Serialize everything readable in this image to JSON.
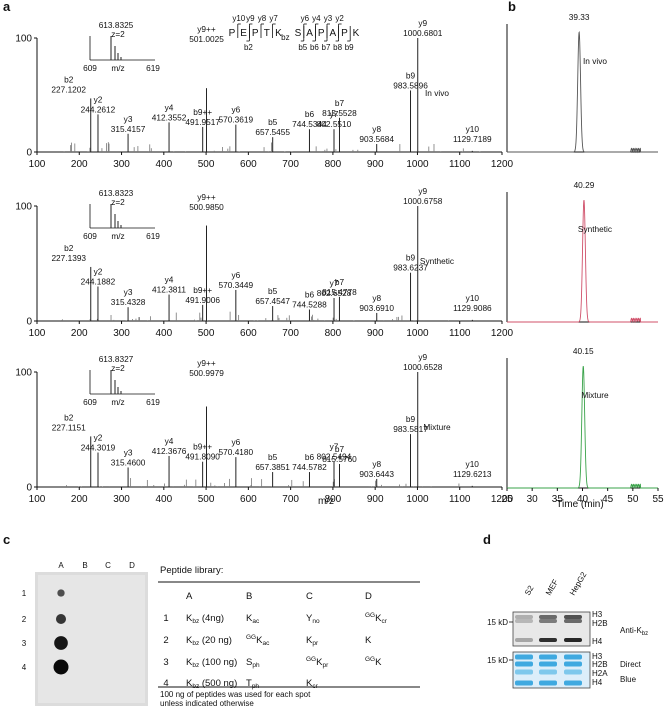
{
  "panels": {
    "a": "a",
    "b": "b",
    "c": "c",
    "d": "d"
  },
  "chart_data": [
    {
      "type": "bar",
      "panel": "a",
      "xlabel": "m/z",
      "xlim": [
        100,
        1200
      ],
      "ylim": [
        0,
        100
      ],
      "xticks": [
        "100",
        "200",
        "300",
        "400",
        "500",
        "600",
        "700",
        "800",
        "900",
        "1000",
        "1100",
        "1200"
      ],
      "yticks": [
        "0",
        "100"
      ],
      "peptide": {
        "letters": [
          "P",
          "E",
          "P",
          "T",
          "K",
          "S",
          "A",
          "P",
          "A",
          "P",
          "K"
        ],
        "modification": "bz",
        "y_ions": [
          "y10",
          "y9",
          "y8",
          "y7",
          "y6",
          "y4",
          "y3",
          "y2"
        ],
        "b_ions": [
          "b2",
          "b5",
          "b6",
          "b7",
          "b8",
          "b9"
        ]
      },
      "spectra": [
        {
          "name": "In vivo",
          "inset": {
            "precursor": "613.8325",
            "charge": "z=2",
            "xmin": "609",
            "xmax": "619",
            "xlabel": "m/z"
          },
          "peaks": [
            {
              "mz": 227.1202,
              "i": 47,
              "label": "b2",
              "value": "227.1202"
            },
            {
              "mz": 244.2612,
              "i": 33,
              "label": "y2",
              "value": "244.2612"
            },
            {
              "mz": 315.4157,
              "i": 16,
              "label": "y3",
              "value": "315.4157"
            },
            {
              "mz": 412.3552,
              "i": 26,
              "label": "y4",
              "value": "412.3552"
            },
            {
              "mz": 491.9517,
              "i": 22,
              "label": "b9++",
              "value": "491.9517"
            },
            {
              "mz": 501.0025,
              "i": 56,
              "label": "y9++",
              "value": "501.0025"
            },
            {
              "mz": 570.3619,
              "i": 24,
              "label": "y6",
              "value": "570.3619"
            },
            {
              "mz": 657.5455,
              "i": 13,
              "label": "b5",
              "value": "657.5455"
            },
            {
              "mz": 744.5344,
              "i": 20,
              "label": "b6",
              "value": "744.5344"
            },
            {
              "mz": 802.551,
              "i": 20,
              "label": "y7",
              "value": "802.5510"
            },
            {
              "mz": 815.5528,
              "i": 30,
              "label": "b7",
              "value": "815.5528"
            },
            {
              "mz": 903.5684,
              "i": 7,
              "label": "y8",
              "value": "903.5684"
            },
            {
              "mz": 983.5896,
              "i": 54,
              "label": "b9",
              "value": "983.5896"
            },
            {
              "mz": 1000.6801,
              "i": 100,
              "label": "y9",
              "value": "1000.6801"
            },
            {
              "mz": 1129.7189,
              "i": 1,
              "label": "y10",
              "value": "1129.7189"
            }
          ]
        },
        {
          "name": "Synthetic",
          "inset": {
            "precursor": "613.8323",
            "charge": "z=2",
            "xmin": "609",
            "xmax": "619",
            "xlabel": "m/z"
          },
          "peaks": [
            {
              "mz": 227.1393,
              "i": 47,
              "label": "b2",
              "value": "227.1393"
            },
            {
              "mz": 244.1882,
              "i": 30,
              "label": "y2",
              "value": "244.1882"
            },
            {
              "mz": 315.4328,
              "i": 12,
              "label": "y3",
              "value": "315.4328"
            },
            {
              "mz": 412.3811,
              "i": 23,
              "label": "y4",
              "value": "412.3811"
            },
            {
              "mz": 491.9006,
              "i": 14,
              "label": "b9++",
              "value": "491.9006"
            },
            {
              "mz": 500.985,
              "i": 83,
              "label": "y9++",
              "value": "500.9850"
            },
            {
              "mz": 570.3449,
              "i": 27,
              "label": "y6",
              "value": "570.3449"
            },
            {
              "mz": 657.4547,
              "i": 13,
              "label": "b5",
              "value": "657.4547"
            },
            {
              "mz": 744.5288,
              "i": 10,
              "label": "b6",
              "value": "744.5288"
            },
            {
              "mz": 802.6528,
              "i": 20,
              "label": "y7",
              "value": "802.6528"
            },
            {
              "mz": 815.4778,
              "i": 21,
              "label": "b7",
              "value": "815.4778"
            },
            {
              "mz": 903.691,
              "i": 7,
              "label": "y8",
              "value": "903.6910"
            },
            {
              "mz": 983.6237,
              "i": 42,
              "label": "b9",
              "value": "983.6237"
            },
            {
              "mz": 1000.6758,
              "i": 100,
              "label": "y9",
              "value": "1000.6758"
            },
            {
              "mz": 1129.9086,
              "i": 1,
              "label": "y10",
              "value": "1129.9086"
            }
          ]
        },
        {
          "name": "Mixture",
          "inset": {
            "precursor": "613.8327",
            "charge": "z=2",
            "xmin": "609",
            "xmax": "619",
            "xlabel": "m/z"
          },
          "peaks": [
            {
              "mz": 227.1151,
              "i": 44,
              "label": "b2",
              "value": "227.1151"
            },
            {
              "mz": 244.3019,
              "i": 30,
              "label": "y2",
              "value": "244.3019"
            },
            {
              "mz": 315.46,
              "i": 17,
              "label": "y3",
              "value": "315.4600"
            },
            {
              "mz": 412.3676,
              "i": 27,
              "label": "y4",
              "value": "412.3676"
            },
            {
              "mz": 491.809,
              "i": 22,
              "label": "b9++",
              "value": "491.8090"
            },
            {
              "mz": 500.9979,
              "i": 70,
              "label": "y9++",
              "value": "500.9979"
            },
            {
              "mz": 570.418,
              "i": 26,
              "label": "y6",
              "value": "570.4180"
            },
            {
              "mz": 657.3851,
              "i": 13,
              "label": "b5",
              "value": "657.3851"
            },
            {
              "mz": 744.5782,
              "i": 13,
              "label": "b6",
              "value": "744.5782"
            },
            {
              "mz": 802.5494,
              "i": 22,
              "label": "y7",
              "value": "802.5494"
            },
            {
              "mz": 815.576,
              "i": 20,
              "label": "b7",
              "value": "815.5760"
            },
            {
              "mz": 903.6443,
              "i": 7,
              "label": "y8",
              "value": "903.6443"
            },
            {
              "mz": 983.5817,
              "i": 46,
              "label": "b9",
              "value": "983.5817"
            },
            {
              "mz": 1000.6528,
              "i": 100,
              "label": "y9",
              "value": "1000.6528"
            },
            {
              "mz": 1129.6213,
              "i": 1,
              "label": "y10",
              "value": "1129.6213"
            }
          ]
        }
      ]
    },
    {
      "type": "line",
      "panel": "b",
      "xlabel": "Time (min)",
      "xlim": [
        25,
        55
      ],
      "xticks": [
        "25",
        "30",
        "35",
        "40",
        "45",
        "50",
        "55"
      ],
      "series": [
        {
          "name": "In vivo",
          "apex": 39.33,
          "apex_label": "39.33",
          "color": "#555555"
        },
        {
          "name": "Synthetic",
          "apex": 40.29,
          "apex_label": "40.29",
          "color": "#d0506a"
        },
        {
          "name": "Mixture",
          "apex": 40.15,
          "apex_label": "40.15",
          "color": "#3aa34a"
        }
      ]
    }
  ],
  "dotblot": {
    "columns": [
      "A",
      "B",
      "C",
      "D"
    ],
    "rows": [
      "1",
      "2",
      "3",
      "4"
    ],
    "spots": [
      {
        "row": "1",
        "col": "A",
        "level": 0.15
      },
      {
        "row": "2",
        "col": "A",
        "level": 0.45
      },
      {
        "row": "3",
        "col": "A",
        "level": 0.85
      },
      {
        "row": "4",
        "col": "A",
        "level": 1.0
      }
    ]
  },
  "library": {
    "title": "Peptide library:",
    "headers": [
      "A",
      "B",
      "C",
      "D"
    ],
    "rows": [
      {
        "n": "1",
        "A": {
          "b": "K",
          "s": "bz",
          "a": " (4ng)"
        },
        "B": {
          "p": "",
          "b": "K",
          "s": "ac"
        },
        "C": {
          "b": "Y",
          "s": "no"
        },
        "D": {
          "p": "GG",
          "b": "K",
          "s": "cr"
        }
      },
      {
        "n": "2",
        "A": {
          "b": "K",
          "s": "bz",
          "a": " (20 ng)"
        },
        "B": {
          "p": "GG",
          "b": "K",
          "s": "ac"
        },
        "C": {
          "b": "K",
          "s": "pr"
        },
        "D": {
          "b": "K",
          "s": ""
        }
      },
      {
        "n": "3",
        "A": {
          "b": "K",
          "s": "bz",
          "a": " (100 ng)"
        },
        "B": {
          "b": "S",
          "s": "ph"
        },
        "C": {
          "p": "GG",
          "b": "K",
          "s": "pr"
        },
        "D": {
          "p": "GG",
          "b": "K",
          "s": ""
        }
      },
      {
        "n": "4",
        "A": {
          "b": "K",
          "s": "bz",
          "a": " (500 ng)"
        },
        "B": {
          "b": "T",
          "s": "ph"
        },
        "C": {
          "b": "K",
          "s": "cr"
        },
        "D": {
          "b": "",
          "s": ""
        }
      }
    ],
    "footnote1": "100 ng of peptides was used for each spot",
    "footnote2": "unless indicated otherwise"
  },
  "western": {
    "lanes": [
      "S2",
      "MEF",
      "HepG2"
    ],
    "marker_top": "15 kD",
    "marker_bottom": "15 kD",
    "top_bands": [
      "H3",
      "H2B",
      "H4"
    ],
    "bottom_bands": [
      "H3",
      "H2B",
      "H2A",
      "H4"
    ],
    "top_label": "Anti-K",
    "top_label_sub": "bz",
    "bottom_label1": "Direct",
    "bottom_label2": "Blue"
  }
}
